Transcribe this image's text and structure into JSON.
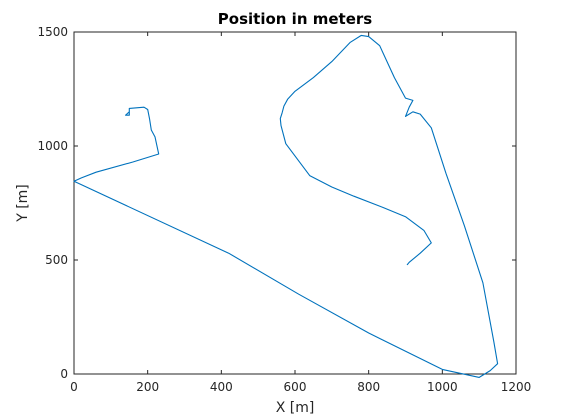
{
  "chart_data": {
    "type": "line",
    "title": "Position in meters",
    "xlabel": "X [m]",
    "ylabel": "Y [m]",
    "xlim": [
      0,
      1200
    ],
    "ylim": [
      0,
      1500
    ],
    "xticks": [
      0,
      200,
      400,
      600,
      800,
      1000,
      1200
    ],
    "yticks": [
      0,
      500,
      1000,
      1500
    ],
    "grid": false,
    "series": [
      {
        "color": "#0072BD",
        "x": [
          150,
          140,
          150,
          150,
          190,
          200,
          205,
          210,
          220,
          230,
          160,
          60,
          20,
          0,
          420,
          610,
          800,
          1000,
          1100,
          1130,
          1150,
          1140,
          1110,
          1060,
          1010,
          970,
          940,
          920,
          900,
          910,
          920,
          900,
          870,
          830,
          800,
          780,
          750,
          700,
          650,
          600,
          580,
          570,
          565,
          560,
          562,
          575,
          640,
          700,
          760,
          840,
          900,
          950,
          970,
          940,
          910,
          905
        ],
        "y": [
          1150,
          1135,
          1135,
          1165,
          1170,
          1160,
          1120,
          1070,
          1040,
          965,
          930,
          885,
          860,
          845,
          530,
          350,
          180,
          20,
          -15,
          15,
          45,
          140,
          400,
          650,
          880,
          1080,
          1140,
          1150,
          1130,
          1170,
          1200,
          1210,
          1300,
          1440,
          1480,
          1485,
          1455,
          1370,
          1300,
          1240,
          1205,
          1175,
          1145,
          1120,
          1090,
          1010,
          870,
          820,
          780,
          730,
          690,
          630,
          575,
          530,
          490,
          480
        ]
      }
    ]
  }
}
